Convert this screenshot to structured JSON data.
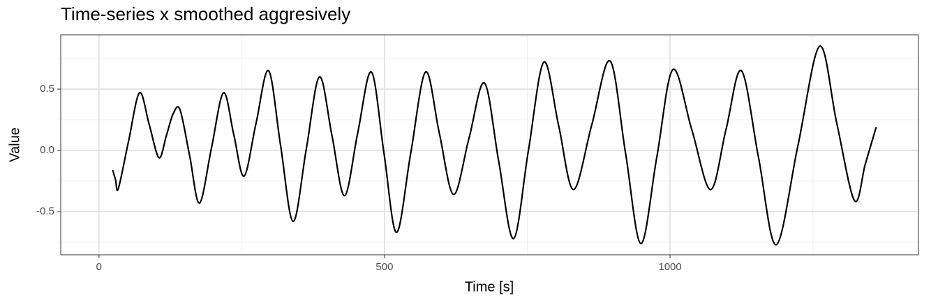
{
  "chart_data": {
    "type": "line",
    "title": "Time-series x smoothed aggresively",
    "x_label": "Time [s]",
    "y_label": "Value",
    "x": [
      24,
      29,
      34,
      52,
      71,
      88,
      105,
      118,
      130,
      142,
      159,
      176,
      197,
      218,
      236,
      254,
      275,
      297,
      318,
      340,
      363,
      386,
      408,
      430,
      453,
      477,
      499,
      521,
      546,
      572,
      596,
      621,
      648,
      675,
      700,
      726,
      752,
      779,
      805,
      831,
      863,
      895,
      922,
      949,
      977,
      1005,
      1038,
      1071,
      1098,
      1125,
      1155,
      1186,
      1224,
      1262,
      1292,
      1323,
      1342,
      1361
    ],
    "series": [
      {
        "color": "#000000",
        "values": [
          -0.16,
          -0.24,
          -0.31,
          0.08,
          0.47,
          0.21,
          -0.06,
          0.12,
          0.3,
          0.33,
          -0.05,
          -0.43,
          0.02,
          0.47,
          0.13,
          -0.21,
          0.22,
          0.65,
          0.04,
          -0.58,
          0.01,
          0.6,
          0.12,
          -0.37,
          0.14,
          0.64,
          -0.02,
          -0.67,
          -0.02,
          0.64,
          0.14,
          -0.36,
          0.1,
          0.55,
          -0.09,
          -0.72,
          0.0,
          0.72,
          0.2,
          -0.32,
          0.21,
          0.73,
          -0.02,
          -0.76,
          -0.05,
          0.66,
          0.17,
          -0.32,
          0.17,
          0.65,
          -0.06,
          -0.77,
          0.04,
          0.85,
          0.22,
          -0.41,
          -0.11,
          0.19
        ]
      }
    ],
    "xlim": [
      -67,
      1435
    ],
    "ylim": [
      -0.852,
      0.943
    ],
    "xticks": [
      0,
      500,
      1000
    ],
    "yticks": [
      {
        "value": -0.5,
        "label": "-0.5"
      },
      {
        "value": 0,
        "label": "0.0"
      },
      0.5
    ],
    "xminor": [
      250,
      750,
      1250
    ],
    "yminor": [
      -0.75,
      -0.25,
      0.25,
      0.75
    ],
    "grid": true
  }
}
